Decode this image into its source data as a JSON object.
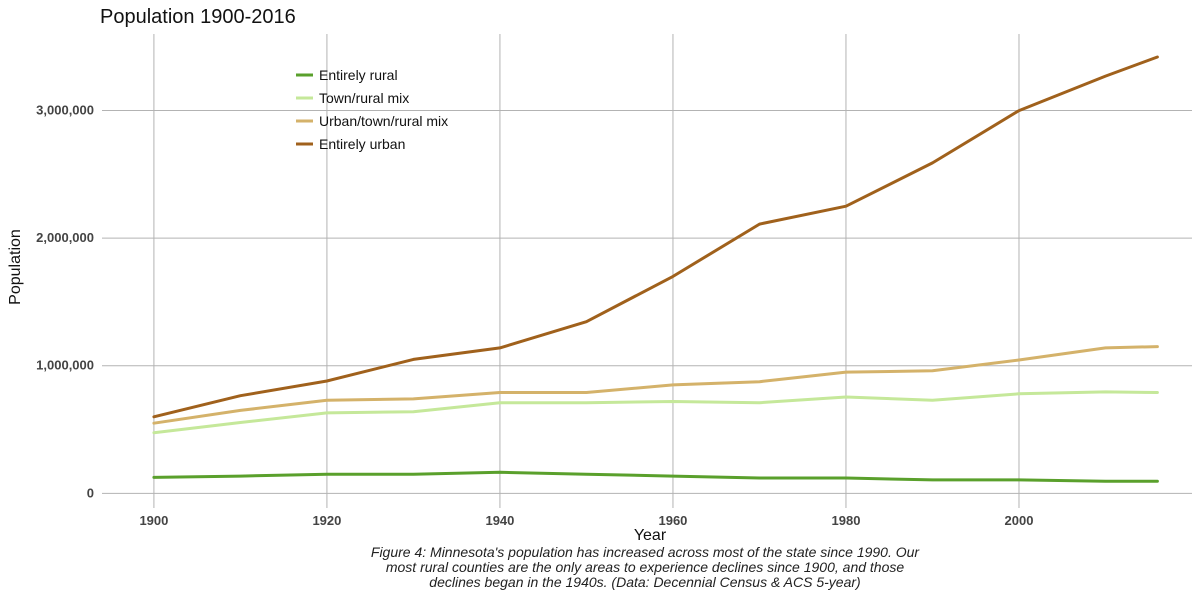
{
  "chart_data": {
    "type": "line",
    "title": "Population 1900-2016",
    "xlabel": "Year",
    "ylabel": "Population",
    "xlim": [
      1894,
      2020
    ],
    "ylim": [
      -115000,
      3600000
    ],
    "x_ticks": [
      1900,
      1920,
      1940,
      1960,
      1980,
      2000
    ],
    "y_ticks": [
      0,
      1000000,
      2000000,
      3000000
    ],
    "y_tick_labels": [
      "0",
      "1,000,000",
      "2,000,000",
      "3,000,000"
    ],
    "grid": true,
    "legend_position": "top-left",
    "x": [
      1900,
      1910,
      1920,
      1930,
      1940,
      1950,
      1960,
      1970,
      1980,
      1990,
      2000,
      2010,
      2016
    ],
    "series": [
      {
        "name": "Entirely rural",
        "color": "#5aa02c",
        "values": [
          125000,
          135000,
          150000,
          150000,
          165000,
          150000,
          135000,
          120000,
          120000,
          105000,
          105000,
          95000,
          95000
        ]
      },
      {
        "name": "Town/rural mix",
        "color": "#c5e89a",
        "values": [
          475000,
          555000,
          630000,
          640000,
          710000,
          710000,
          720000,
          710000,
          755000,
          730000,
          780000,
          795000,
          790000
        ]
      },
      {
        "name": "Urban/town/rural mix",
        "color": "#d4b26a",
        "values": [
          550000,
          650000,
          730000,
          740000,
          790000,
          790000,
          850000,
          875000,
          950000,
          960000,
          1045000,
          1140000,
          1150000
        ]
      },
      {
        "name": "Entirely urban",
        "color": "#a0611c",
        "values": [
          600000,
          765000,
          880000,
          1050000,
          1140000,
          1345000,
          1700000,
          2110000,
          2250000,
          2590000,
          3000000,
          3270000,
          3420000
        ]
      }
    ]
  },
  "caption_lines": [
    "Figure 4: Minnesota's population has increased across most of the state since 1990. Our",
    "most rural counties are the only areas to experience declines since 1900, and those",
    "declines began in the 1940s. (Data: Decennial Census & ACS 5-year)"
  ]
}
